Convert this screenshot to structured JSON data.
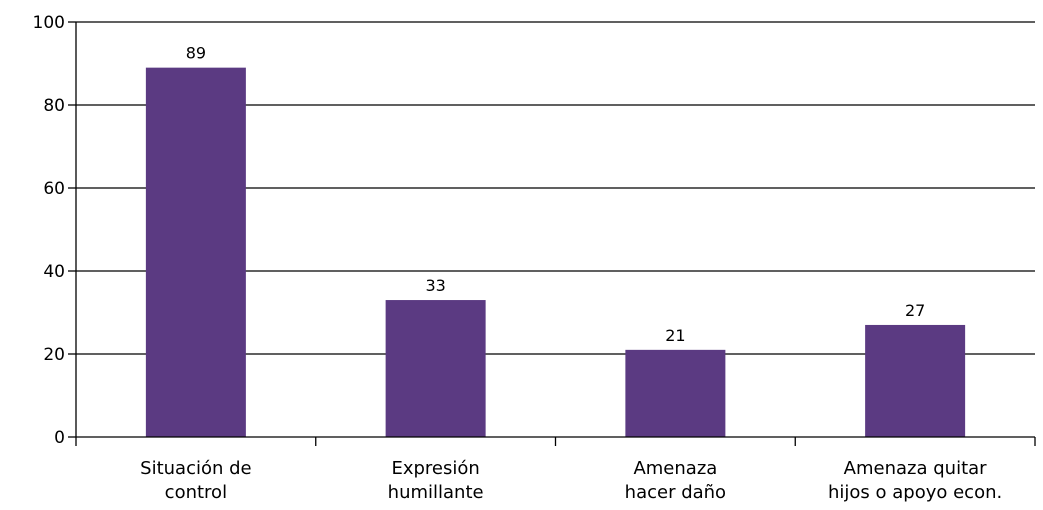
{
  "chart_data": {
    "type": "bar",
    "categories": [
      [
        "Situación de",
        "control"
      ],
      [
        "Expresión",
        "humillante"
      ],
      [
        "Amenaza",
        "hacer daño"
      ],
      [
        "Amenaza quitar",
        "hijos o apoyo econ."
      ]
    ],
    "values": [
      89,
      33,
      21,
      27
    ],
    "data_labels": [
      "89",
      "33",
      "21",
      "27"
    ],
    "y_ticks": [
      0,
      20,
      40,
      60,
      80,
      100
    ],
    "ylim": [
      0,
      100
    ],
    "grid": true,
    "legend": "none",
    "colors": {
      "bar": "#5b3a82",
      "grid": "#000000",
      "axis": "#000000"
    }
  }
}
